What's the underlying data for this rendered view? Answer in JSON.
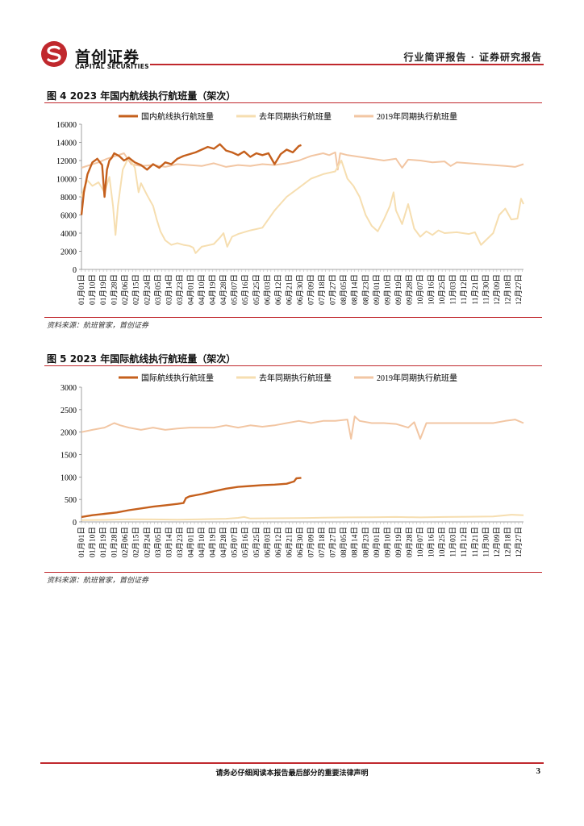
{
  "header": {
    "brand_cn": "首创证券",
    "brand_en": "CAPITAL SECURITIES",
    "report_type": "行业简评报告 · 证券研究报告"
  },
  "colors": {
    "accent": "#c0282d",
    "series_2023": "#c5601d",
    "series_last_year": "#f6deb0",
    "series_2019": "#f2c6a3"
  },
  "figures": [
    {
      "title": "图 4 2023 年国内航线执行航班量（架次）",
      "source": "资料来源：航班管家，首创证券"
    },
    {
      "title": "图 5 2023 年国际航线执行航班量（架次）",
      "source": "资料来源：航班管家，首创证券"
    }
  ],
  "chart_data": [
    {
      "type": "line",
      "title": "2023 年国内航线执行航班量（架次）",
      "ylim": [
        0,
        16000
      ],
      "yticks": [
        0,
        2000,
        4000,
        6000,
        8000,
        10000,
        12000,
        14000,
        16000
      ],
      "ytick_labels": [
        "0",
        "2000",
        "4000",
        "6000",
        "8000",
        "10000",
        "12000",
        "14000",
        "16000"
      ],
      "x_day_range": [
        1,
        365
      ],
      "xtick_days": [
        1,
        10,
        19,
        28,
        37,
        46,
        55,
        64,
        73,
        82,
        91,
        100,
        109,
        118,
        127,
        136,
        145,
        154,
        163,
        172,
        181,
        190,
        199,
        208,
        217,
        226,
        235,
        244,
        253,
        262,
        271,
        280,
        289,
        298,
        307,
        316,
        325,
        334,
        343,
        352,
        361
      ],
      "xtick_labels": [
        "01月01日",
        "01月10日",
        "01月19日",
        "01月28日",
        "02月06日",
        "02月15日",
        "02月24日",
        "03月05日",
        "03月14日",
        "03月23日",
        "04月01日",
        "04月10日",
        "04月19日",
        "04月28日",
        "05月07日",
        "05月16日",
        "05月25日",
        "06月03日",
        "06月12日",
        "06月21日",
        "06月30日",
        "07月09日",
        "07月18日",
        "07月27日",
        "08月05日",
        "08月14日",
        "08月23日",
        "09月01日",
        "09月10日",
        "09月19日",
        "09月28日",
        "10月07日",
        "10月16日",
        "10月25日",
        "11月03日",
        "11月12日",
        "11月21日",
        "11月30日",
        "12月09日",
        "12月18日",
        "12月27日"
      ],
      "legend": [
        "国内航线执行航班量",
        "去年同期执行航班量",
        "2019年同期执行航班量"
      ],
      "series": [
        {
          "name": "2019年同期执行航班量",
          "x": [
            1,
            8,
            15,
            22,
            29,
            36,
            42,
            50,
            60,
            70,
            80,
            90,
            100,
            110,
            120,
            130,
            140,
            150,
            160,
            170,
            180,
            190,
            200,
            205,
            210,
            212,
            214,
            220,
            230,
            240,
            250,
            260,
            265,
            270,
            280,
            290,
            300,
            305,
            310,
            320,
            330,
            340,
            350,
            358,
            365
          ],
          "values": [
            11200,
            11500,
            11800,
            12200,
            12500,
            12800,
            11600,
            11400,
            11500,
            11300,
            11600,
            11500,
            11400,
            11700,
            11300,
            11500,
            11400,
            11600,
            11500,
            11700,
            12000,
            12500,
            12800,
            12600,
            12900,
            11000,
            12800,
            12600,
            12400,
            12200,
            12000,
            12200,
            11200,
            12100,
            12000,
            11800,
            11900,
            11400,
            11800,
            11700,
            11600,
            11500,
            11400,
            11300,
            11600
          ]
        },
        {
          "name": "去年同期执行航班量",
          "x": [
            1,
            3,
            6,
            10,
            15,
            20,
            24,
            27,
            29,
            31,
            35,
            40,
            45,
            48,
            50,
            55,
            60,
            63,
            66,
            70,
            75,
            80,
            85,
            90,
            93,
            95,
            100,
            110,
            115,
            118,
            121,
            125,
            130,
            140,
            150,
            160,
            170,
            180,
            190,
            200,
            210,
            215,
            220,
            225,
            230,
            235,
            240,
            245,
            250,
            255,
            258,
            260,
            265,
            270,
            275,
            280,
            285,
            290,
            295,
            300,
            310,
            320,
            325,
            330,
            340,
            345,
            350,
            355,
            360,
            363,
            365
          ],
          "values": [
            8000,
            9000,
            9800,
            9200,
            9600,
            8500,
            10200,
            7000,
            3800,
            7000,
            11000,
            12400,
            11200,
            8500,
            9500,
            8200,
            7000,
            5500,
            4200,
            3200,
            2700,
            2900,
            2700,
            2600,
            2400,
            1800,
            2500,
            2800,
            3500,
            4000,
            2500,
            3600,
            3900,
            4300,
            4600,
            6500,
            8000,
            9000,
            10000,
            10500,
            10800,
            12000,
            10000,
            9200,
            8000,
            6000,
            4800,
            4200,
            5500,
            7000,
            8500,
            6500,
            5000,
            7200,
            4500,
            3600,
            4200,
            3800,
            4300,
            4000,
            4100,
            3900,
            4100,
            2700,
            4000,
            6000,
            6700,
            5500,
            5600,
            7800,
            7200
          ]
        },
        {
          "name": "国内航线执行航班量",
          "x": [
            1,
            3,
            6,
            10,
            14,
            18,
            20,
            22,
            24,
            26,
            28,
            32,
            36,
            40,
            45,
            50,
            55,
            60,
            65,
            70,
            75,
            80,
            85,
            90,
            95,
            100,
            105,
            110,
            115,
            120,
            125,
            130,
            135,
            140,
            145,
            150,
            155,
            160,
            165,
            170,
            175,
            180,
            182
          ],
          "values": [
            6000,
            8500,
            10500,
            11800,
            12200,
            11500,
            8000,
            11000,
            12000,
            12300,
            12800,
            12500,
            12000,
            12300,
            11800,
            11500,
            11000,
            11600,
            11200,
            11800,
            11600,
            12200,
            12500,
            12700,
            12900,
            13200,
            13500,
            13300,
            13800,
            13100,
            12900,
            12600,
            13000,
            12400,
            12800,
            12600,
            12800,
            11600,
            12700,
            13200,
            12900,
            13600,
            13700
          ]
        }
      ]
    },
    {
      "type": "line",
      "title": "2023 年国际航线执行航班量（架次）",
      "ylim": [
        0,
        3000
      ],
      "yticks": [
        0,
        500,
        1000,
        1500,
        2000,
        2500,
        3000
      ],
      "ytick_labels": [
        "0",
        "500",
        "1000",
        "1500",
        "2000",
        "2500",
        "3000"
      ],
      "x_day_range": [
        1,
        365
      ],
      "xtick_days": [
        1,
        10,
        19,
        28,
        37,
        46,
        55,
        64,
        73,
        82,
        91,
        100,
        109,
        118,
        127,
        136,
        145,
        154,
        163,
        172,
        181,
        190,
        199,
        208,
        217,
        226,
        235,
        244,
        253,
        262,
        271,
        280,
        289,
        298,
        307,
        316,
        325,
        334,
        343,
        352,
        361
      ],
      "xtick_labels": [
        "01月01日",
        "01月10日",
        "01月19日",
        "01月28日",
        "02月06日",
        "02月15日",
        "02月24日",
        "03月05日",
        "03月14日",
        "03月23日",
        "04月01日",
        "04月10日",
        "04月19日",
        "04月28日",
        "05月07日",
        "05月16日",
        "05月25日",
        "06月03日",
        "06月12日",
        "06月21日",
        "06月30日",
        "07月09日",
        "07月18日",
        "07月27日",
        "08月05日",
        "08月14日",
        "08月23日",
        "09月01日",
        "09月10日",
        "09月19日",
        "09月28日",
        "10月07日",
        "10月16日",
        "10月25日",
        "11月03日",
        "11月12日",
        "11月21日",
        "11月30日",
        "12月09日",
        "12月18日",
        "12月27日"
      ],
      "legend": [
        "国际航线执行航班量",
        "去年同期执行航班量",
        "2019年同期执行航班量"
      ],
      "series": [
        {
          "name": "2019年同期执行航班量",
          "x": [
            1,
            10,
            20,
            28,
            33,
            40,
            50,
            60,
            70,
            80,
            90,
            100,
            110,
            120,
            130,
            140,
            150,
            160,
            170,
            180,
            190,
            200,
            210,
            220,
            223,
            226,
            230,
            240,
            250,
            260,
            270,
            275,
            280,
            285,
            290,
            300,
            310,
            320,
            330,
            340,
            350,
            358,
            365
          ],
          "values": [
            2000,
            2050,
            2100,
            2200,
            2150,
            2100,
            2050,
            2100,
            2050,
            2080,
            2100,
            2100,
            2100,
            2150,
            2100,
            2150,
            2120,
            2150,
            2200,
            2250,
            2200,
            2250,
            2250,
            2280,
            1850,
            2350,
            2250,
            2200,
            2200,
            2180,
            2100,
            2220,
            1850,
            2200,
            2200,
            2200,
            2200,
            2200,
            2200,
            2200,
            2250,
            2280,
            2200
          ]
        },
        {
          "name": "去年同期执行航班量",
          "x": [
            1,
            20,
            40,
            60,
            80,
            100,
            120,
            130,
            135,
            140,
            160,
            180,
            200,
            220,
            240,
            260,
            280,
            300,
            320,
            340,
            355,
            365
          ],
          "values": [
            40,
            45,
            60,
            55,
            50,
            60,
            70,
            90,
            110,
            75,
            80,
            85,
            95,
            100,
            105,
            110,
            100,
            110,
            115,
            120,
            160,
            150
          ]
        },
        {
          "name": "国际航线执行航班量",
          "x": [
            1,
            10,
            20,
            30,
            40,
            50,
            60,
            70,
            80,
            85,
            87,
            90,
            100,
            110,
            120,
            130,
            140,
            150,
            160,
            170,
            176,
            178,
            182
          ],
          "values": [
            110,
            150,
            180,
            210,
            260,
            300,
            340,
            370,
            400,
            420,
            530,
            570,
            620,
            680,
            740,
            780,
            800,
            820,
            830,
            850,
            900,
            970,
            980
          ]
        }
      ]
    }
  ],
  "footer": {
    "disclaimer": "请务必仔细阅读本报告最后部分的重要法律声明",
    "page_number": "3"
  }
}
